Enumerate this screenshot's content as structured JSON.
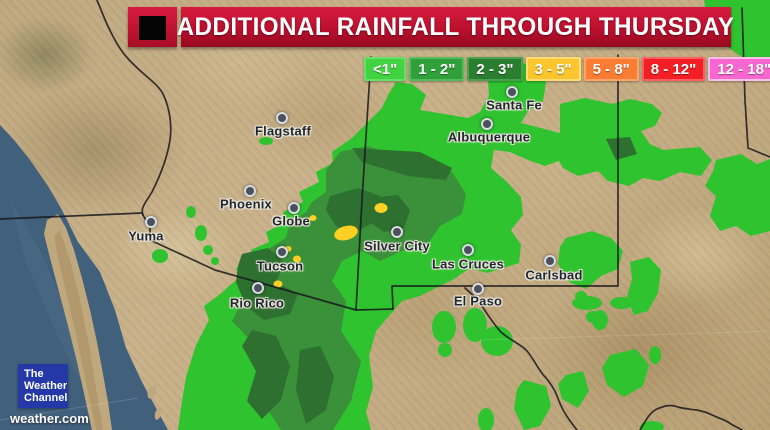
{
  "header": {
    "title": "ADDITIONAL RAINFALL THROUGH THURSDAY"
  },
  "legend": [
    {
      "label": "<1\"",
      "color": "#41d341",
      "border": "#67e067"
    },
    {
      "label": "1 - 2\"",
      "color": "#2fa03a",
      "border": "#55bc5e"
    },
    {
      "label": "2 - 3\"",
      "color": "#2b7e2f",
      "border": "#4aa24f"
    },
    {
      "label": "3 - 5\"",
      "color": "#fbc52d",
      "border": "#ffdf74"
    },
    {
      "label": "5 - 8\"",
      "color": "#fb7d33",
      "border": "#ffa568"
    },
    {
      "label": "8 - 12\"",
      "color": "#f41f24",
      "border": "#ff5f62"
    },
    {
      "label": "12 - 18\"",
      "color": "#f767cf",
      "border": "#f9c2e8"
    }
  ],
  "cities": [
    {
      "name": "Flagstaff",
      "dot": [
        282,
        118
      ],
      "label": [
        283,
        131
      ]
    },
    {
      "name": "Santa Fe",
      "dot": [
        512,
        92
      ],
      "label": [
        514,
        105
      ]
    },
    {
      "name": "Albuquerque",
      "dot": [
        487,
        124
      ],
      "label": [
        489,
        137
      ]
    },
    {
      "name": "Phoenix",
      "dot": [
        250,
        191
      ],
      "label": [
        246,
        204
      ]
    },
    {
      "name": "Globe",
      "dot": [
        294,
        208
      ],
      "label": [
        291,
        221
      ]
    },
    {
      "name": "Yuma",
      "dot": [
        151,
        222
      ],
      "label": [
        146,
        236
      ]
    },
    {
      "name": "Silver City",
      "dot": [
        397,
        232
      ],
      "label": [
        397,
        246
      ]
    },
    {
      "name": "Tucson",
      "dot": [
        282,
        252
      ],
      "label": [
        280,
        266
      ]
    },
    {
      "name": "Las Cruces",
      "dot": [
        468,
        250
      ],
      "label": [
        468,
        264
      ]
    },
    {
      "name": "Carlsbad",
      "dot": [
        550,
        261
      ],
      "label": [
        554,
        275
      ]
    },
    {
      "name": "Rio Rico",
      "dot": [
        258,
        288
      ],
      "label": [
        257,
        303
      ]
    },
    {
      "name": "El Paso",
      "dot": [
        478,
        289
      ],
      "label": [
        478,
        301
      ]
    }
  ],
  "branding": {
    "logo_lines": [
      "The",
      "Weather",
      "Channel"
    ],
    "url": "weather.com"
  },
  "map_colors": {
    "rain_under_1in": "#2fc32f",
    "rain_1_2in": "#3a9139",
    "rain_2_3in": "#2e7030",
    "rain_3_5in": "#ffd024",
    "ocean": "#41607c",
    "terrain": "#c3ab82",
    "banner_red": "#bb102e",
    "logo_blue": "#2438a8"
  }
}
